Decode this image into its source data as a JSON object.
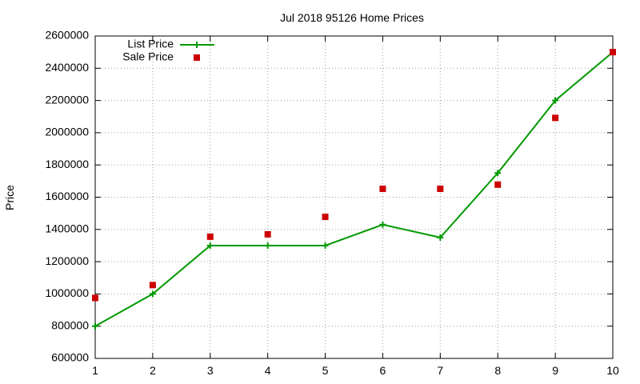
{
  "chart_data": {
    "type": "line",
    "title": "Jul 2018 95126 Home Prices",
    "xlabel": "",
    "ylabel": "Price",
    "x": [
      1,
      2,
      3,
      4,
      5,
      6,
      7,
      8,
      9,
      10
    ],
    "xlim": [
      1,
      10
    ],
    "ylim": [
      600000,
      2600000
    ],
    "yticks": [
      600000,
      800000,
      1000000,
      1200000,
      1400000,
      1600000,
      1800000,
      2000000,
      2200000,
      2400000,
      2600000
    ],
    "xticks": [
      1,
      2,
      3,
      4,
      5,
      6,
      7,
      8,
      9,
      10
    ],
    "grid": true,
    "legend_position": "top-left",
    "series": [
      {
        "name": "List Price",
        "style": "line-with-plus-markers",
        "color": "#009900",
        "values": [
          800000,
          1000000,
          1300000,
          1300000,
          1300000,
          1430000,
          1350000,
          1750000,
          2200000,
          2500000
        ]
      },
      {
        "name": "Sale Price",
        "style": "square-markers",
        "color": "#cc0000",
        "values": [
          975000,
          1055000,
          1355000,
          1370000,
          1478000,
          1652000,
          1652000,
          1678000,
          2092000,
          2500000
        ]
      }
    ]
  }
}
